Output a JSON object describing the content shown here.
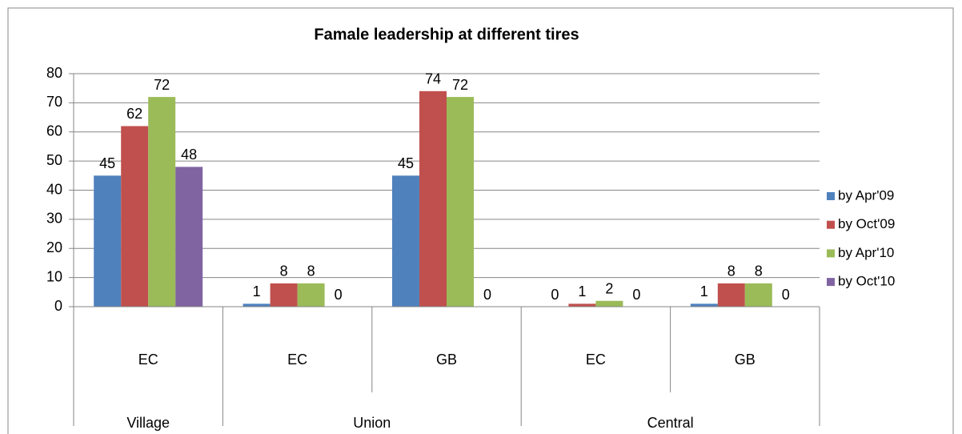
{
  "chart_data": {
    "type": "bar",
    "title": "Famale leadership at different tires",
    "groups": [
      {
        "name": "Village",
        "categories": [
          "EC"
        ]
      },
      {
        "name": "Union",
        "categories": [
          "EC",
          "GB"
        ]
      },
      {
        "name": "Central",
        "categories": [
          "EC",
          "GB"
        ]
      }
    ],
    "series": [
      {
        "name": "by Apr'09",
        "color": "#4f81bd",
        "values": [
          45,
          1,
          45,
          0,
          1
        ]
      },
      {
        "name": "by Oct'09",
        "color": "#c0504d",
        "values": [
          62,
          8,
          74,
          1,
          8
        ]
      },
      {
        "name": "by Apr'10",
        "color": "#9bbb59",
        "values": [
          72,
          8,
          72,
          2,
          8
        ]
      },
      {
        "name": "by Oct'10",
        "color": "#8064a2",
        "values": [
          48,
          0,
          0,
          0,
          0
        ]
      }
    ],
    "ylim": [
      0,
      80
    ],
    "yticks": [
      0,
      10,
      20,
      30,
      40,
      50,
      60,
      70,
      80
    ],
    "grid": true,
    "legend": "right"
  }
}
